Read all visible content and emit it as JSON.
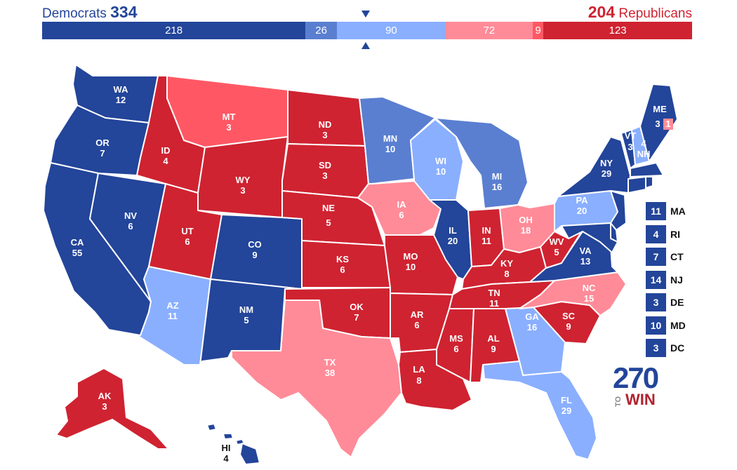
{
  "header": {
    "dem_label": "Democrats",
    "dem_total": "334",
    "rep_total": "204",
    "rep_label": "Republicans"
  },
  "bar": [
    {
      "label": "218",
      "value": 218,
      "color": "#23459a"
    },
    {
      "label": "26",
      "value": 26,
      "color": "#5a7fd1"
    },
    {
      "label": "90",
      "value": 90,
      "color": "#8aafff"
    },
    {
      "label": "72",
      "value": 72,
      "color": "#ff8b98"
    },
    {
      "label": "9",
      "value": 9,
      "color": "#ff5864"
    },
    {
      "label": "123",
      "value": 123,
      "color": "#cf2331"
    }
  ],
  "colors": {
    "safe_d": "#23459a",
    "likely_d": "#5a7fd1",
    "lean_d": "#8aafff",
    "lean_r": "#ff8b98",
    "likely_r": "#ff5864",
    "safe_r": "#cf2331"
  },
  "states": {
    "WA": {
      "abbr": "WA",
      "ev": "12"
    },
    "OR": {
      "abbr": "OR",
      "ev": "7"
    },
    "CA": {
      "abbr": "CA",
      "ev": "55"
    },
    "NV": {
      "abbr": "NV",
      "ev": "6"
    },
    "ID": {
      "abbr": "ID",
      "ev": "4"
    },
    "MT": {
      "abbr": "MT",
      "ev": "3"
    },
    "WY": {
      "abbr": "WY",
      "ev": "3"
    },
    "UT": {
      "abbr": "UT",
      "ev": "6"
    },
    "AZ": {
      "abbr": "AZ",
      "ev": "11"
    },
    "CO": {
      "abbr": "CO",
      "ev": "9"
    },
    "NM": {
      "abbr": "NM",
      "ev": "5"
    },
    "ND": {
      "abbr": "ND",
      "ev": "3"
    },
    "SD": {
      "abbr": "SD",
      "ev": "3"
    },
    "NE": {
      "abbr": "NE",
      "ev": "5"
    },
    "KS": {
      "abbr": "KS",
      "ev": "6"
    },
    "OK": {
      "abbr": "OK",
      "ev": "7"
    },
    "TX": {
      "abbr": "TX",
      "ev": "38"
    },
    "MN": {
      "abbr": "MN",
      "ev": "10"
    },
    "IA": {
      "abbr": "IA",
      "ev": "6"
    },
    "MO": {
      "abbr": "MO",
      "ev": "10"
    },
    "AR": {
      "abbr": "AR",
      "ev": "6"
    },
    "LA": {
      "abbr": "LA",
      "ev": "8"
    },
    "WI": {
      "abbr": "WI",
      "ev": "10"
    },
    "IL": {
      "abbr": "IL",
      "ev": "20"
    },
    "MI": {
      "abbr": "MI",
      "ev": "16"
    },
    "IN": {
      "abbr": "IN",
      "ev": "11"
    },
    "OH": {
      "abbr": "OH",
      "ev": "18"
    },
    "KY": {
      "abbr": "KY",
      "ev": "8"
    },
    "TN": {
      "abbr": "TN",
      "ev": "11"
    },
    "MS": {
      "abbr": "MS",
      "ev": "6"
    },
    "AL": {
      "abbr": "AL",
      "ev": "9"
    },
    "GA": {
      "abbr": "GA",
      "ev": "16"
    },
    "FL": {
      "abbr": "FL",
      "ev": "29"
    },
    "SC": {
      "abbr": "SC",
      "ev": "9"
    },
    "NC": {
      "abbr": "NC",
      "ev": "15"
    },
    "VA": {
      "abbr": "VA",
      "ev": "13"
    },
    "WV": {
      "abbr": "WV",
      "ev": "5"
    },
    "PA": {
      "abbr": "PA",
      "ev": "20"
    },
    "NY": {
      "abbr": "NY",
      "ev": "29"
    },
    "VT": {
      "abbr": "VT",
      "ev": "3"
    },
    "NH": {
      "abbr": "NH",
      "ev": "4"
    },
    "ME": {
      "abbr": "ME",
      "ev": "3"
    },
    "ME_CD2": {
      "ev": "1"
    },
    "AK": {
      "abbr": "AK",
      "ev": "3"
    },
    "HI": {
      "abbr": "HI",
      "ev": "4"
    }
  },
  "small_states": [
    {
      "abbr": "MA",
      "ev": "11"
    },
    {
      "abbr": "RI",
      "ev": "4"
    },
    {
      "abbr": "CT",
      "ev": "7"
    },
    {
      "abbr": "NJ",
      "ev": "14"
    },
    {
      "abbr": "DE",
      "ev": "3"
    },
    {
      "abbr": "MD",
      "ev": "10"
    },
    {
      "abbr": "DC",
      "ev": "3"
    }
  ],
  "logo": {
    "number": "270",
    "to": "TO",
    "win": "WIN"
  }
}
